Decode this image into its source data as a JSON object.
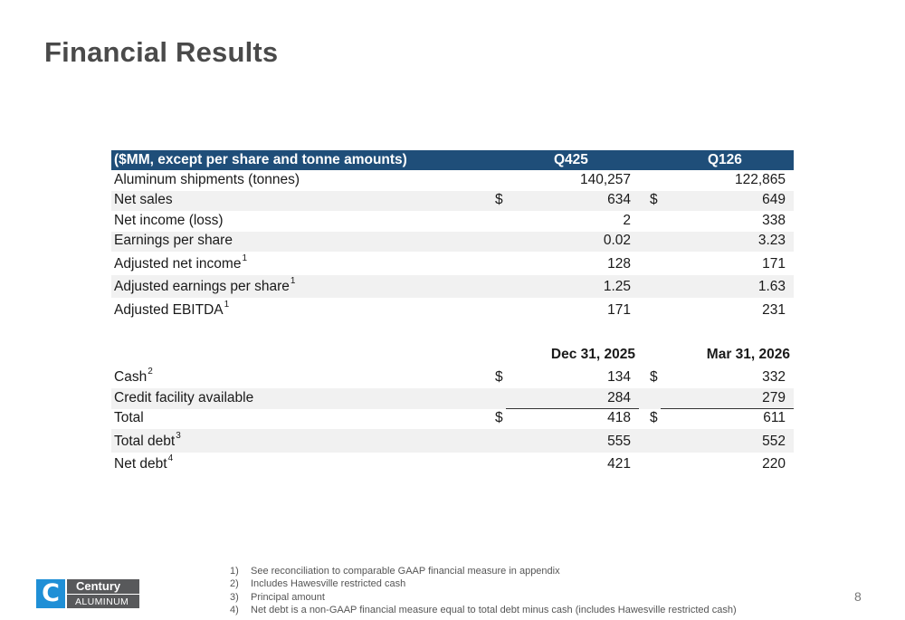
{
  "page": {
    "title": "Financial Results",
    "page_number": "8"
  },
  "table": {
    "header": {
      "label": "($MM, except per share and tonne amounts)",
      "col1": "Q425",
      "col2": "Q126"
    },
    "rows": [
      {
        "label": "Aluminum shipments (tonnes)",
        "sup": "",
        "dollar1": "",
        "v1": "140,257",
        "dollar2": "",
        "v2": "122,865"
      },
      {
        "label": "Net sales",
        "sup": "",
        "dollar1": "$",
        "v1": "634",
        "dollar2": "$",
        "v2": "649"
      },
      {
        "label": "Net income (loss)",
        "sup": "",
        "dollar1": "",
        "v1": "2",
        "dollar2": "",
        "v2": "338"
      },
      {
        "label": "Earnings per share",
        "sup": "",
        "dollar1": "",
        "v1": "0.02",
        "dollar2": "",
        "v2": "3.23"
      },
      {
        "label": "Adjusted net income",
        "sup": "1",
        "dollar1": "",
        "v1": "128",
        "dollar2": "",
        "v2": "171"
      },
      {
        "label": "Adjusted earnings per share",
        "sup": "1",
        "dollar1": "",
        "v1": "1.25",
        "dollar2": "",
        "v2": "1.63"
      },
      {
        "label": "Adjusted EBITDA",
        "sup": "1",
        "dollar1": "",
        "v1": "171",
        "dollar2": "",
        "v2": "231"
      }
    ],
    "balance_header": {
      "col1": "Dec 31, 2025",
      "col2": "Mar 31, 2026"
    },
    "balance_rows": [
      {
        "label": "Cash",
        "sup": "2",
        "dollar1": "$",
        "v1": "134",
        "dollar2": "$",
        "v2": "332"
      },
      {
        "label": "Credit facility available",
        "sup": "",
        "dollar1": "",
        "v1": "284",
        "dollar2": "",
        "v2": "279"
      },
      {
        "label": "Total",
        "sup": "",
        "dollar1": "$",
        "v1": "418",
        "dollar2": "$",
        "v2": "611"
      },
      {
        "label": "Total debt",
        "sup": "3",
        "dollar1": "",
        "v1": "555",
        "dollar2": "",
        "v2": "552"
      },
      {
        "label": "Net debt",
        "sup": "4",
        "dollar1": "",
        "v1": "421",
        "dollar2": "",
        "v2": "220"
      }
    ]
  },
  "footnotes": [
    {
      "num": "1)",
      "text": "See reconciliation to comparable GAAP financial measure in appendix"
    },
    {
      "num": "2)",
      "text": "Includes Hawesville restricted cash"
    },
    {
      "num": "3)",
      "text": "Principal amount"
    },
    {
      "num": "4)",
      "text": "Net debt is a non-GAAP financial measure equal to total debt minus cash (includes Hawesville restricted cash)"
    }
  ],
  "logo": {
    "mark": "C",
    "name": "Century",
    "sub": "ALUMINUM",
    "color": "#1f8fd6"
  },
  "colors": {
    "header_bg": "#1f4e79",
    "row_shade": "#f1f1f1",
    "title": "#4a4a4a"
  }
}
